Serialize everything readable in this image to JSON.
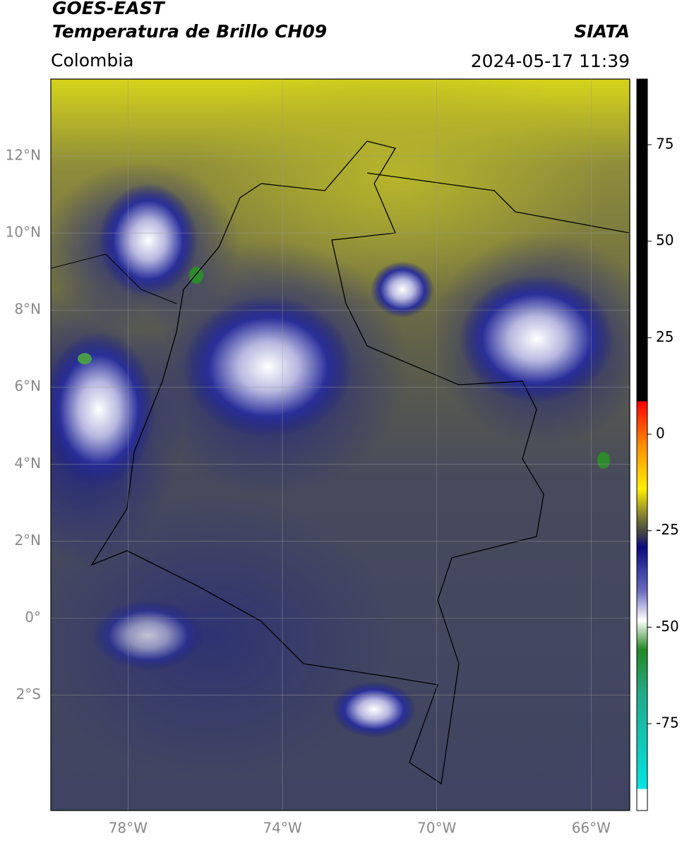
{
  "header": {
    "title": "GOES-EAST",
    "subtitle": "Temperatura de Brillo CH09",
    "source": "SIATA",
    "region": "Colombia",
    "datetime": "2024-05-17 11:39"
  },
  "map": {
    "latlim": [
      -5,
      14
    ],
    "lonlim": [
      -80,
      -65
    ],
    "lat_ticks": [
      {
        "value": 12,
        "label": "12°N"
      },
      {
        "value": 10,
        "label": "10°N"
      },
      {
        "value": 8,
        "label": "8°N"
      },
      {
        "value": 6,
        "label": "6°N"
      },
      {
        "value": 4,
        "label": "4°N"
      },
      {
        "value": 2,
        "label": "2°N"
      },
      {
        "value": 0,
        "label": "0°"
      },
      {
        "value": -2,
        "label": "2°S"
      }
    ],
    "lon_ticks": [
      {
        "value": -78,
        "label": "78°W"
      },
      {
        "value": -74,
        "label": "74°W"
      },
      {
        "value": -70,
        "label": "70°W"
      },
      {
        "value": -66,
        "label": "66°W"
      }
    ]
  },
  "colorbar": {
    "lim": [
      -97.5,
      92
    ],
    "ticks": [
      75,
      50,
      25,
      0,
      -25,
      -50,
      -75
    ]
  }
}
